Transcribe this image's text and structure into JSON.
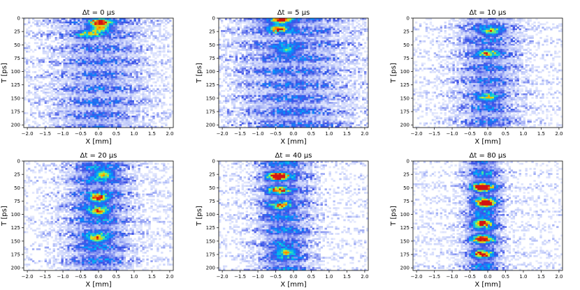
{
  "figure": {
    "panels_count": 6
  },
  "chart_data": [
    {
      "type": "heatmap",
      "title": "Δt = 0 μs",
      "xlabel": "X [mm]",
      "ylabel": "T [ps]",
      "xlim": [
        -2.1,
        2.1
      ],
      "ylim": [
        205,
        0
      ],
      "xticks": [
        "−2.0",
        "−1.5",
        "−1.0",
        "−0.5",
        "0.0",
        "0.5",
        "1.0",
        "1.5",
        "2.0"
      ],
      "yticks": [
        "0",
        "25",
        "50",
        "75",
        "100",
        "125",
        "150",
        "175",
        "200"
      ],
      "colormap": "jet-on-white",
      "hotspots": [
        {
          "x": 0.05,
          "t": 8,
          "level": 0.8
        },
        {
          "x": 0.05,
          "t": 20,
          "level": 0.7
        },
        {
          "x": -0.3,
          "t": 30,
          "level": 0.5
        }
      ]
    },
    {
      "type": "heatmap",
      "title": "Δt = 5 μs",
      "xlabel": "X [mm]",
      "ylabel": "T [ps]",
      "xlim": [
        -2.1,
        2.1
      ],
      "ylim": [
        205,
        0
      ],
      "xticks": [
        "−2.0",
        "−1.5",
        "−1.0",
        "−0.5",
        "0.0",
        "0.5",
        "1.0",
        "1.5",
        "2.0"
      ],
      "yticks": [
        "0",
        "25",
        "50",
        "75",
        "100",
        "125",
        "150",
        "175",
        "200"
      ],
      "colormap": "jet-on-white",
      "hotspots": [
        {
          "x": -0.35,
          "t": 4,
          "level": 0.8
        },
        {
          "x": -0.45,
          "t": 20,
          "level": 0.75
        },
        {
          "x": -0.2,
          "t": 60,
          "level": 0.5
        }
      ]
    },
    {
      "type": "heatmap",
      "title": "Δt = 10 μs",
      "xlabel": "X [mm]",
      "ylabel": "T [ps]",
      "xlim": [
        -2.1,
        2.1
      ],
      "ylim": [
        205,
        0
      ],
      "xticks": [
        "−2.0",
        "−1.5",
        "−1.0",
        "−0.5",
        "0.0",
        "0.5",
        "1.0",
        "1.5",
        "2.0"
      ],
      "yticks": [
        "0",
        "25",
        "50",
        "75",
        "100",
        "125",
        "150",
        "175",
        "200"
      ],
      "colormap": "jet-on-white",
      "hotspots": [
        {
          "x": 0.1,
          "t": 25,
          "level": 0.6
        },
        {
          "x": 0.0,
          "t": 65,
          "level": 0.55
        },
        {
          "x": 0.0,
          "t": 150,
          "level": 0.5
        }
      ]
    },
    {
      "type": "heatmap",
      "title": "Δt = 20 μs",
      "xlabel": "X [mm]",
      "ylabel": "T [ps]",
      "xlim": [
        -2.1,
        2.1
      ],
      "ylim": [
        205,
        0
      ],
      "xticks": [
        "−2.0",
        "−1.5",
        "−1.0",
        "−0.5",
        "0.0",
        "0.5",
        "1.0",
        "1.5",
        "2.0"
      ],
      "yticks": [
        "0",
        "25",
        "50",
        "75",
        "100",
        "125",
        "150",
        "175",
        "200"
      ],
      "colormap": "jet-on-white",
      "hotspots": [
        {
          "x": 0.15,
          "t": 25,
          "level": 0.65
        },
        {
          "x": 0.0,
          "t": 70,
          "level": 0.8
        },
        {
          "x": 0.0,
          "t": 95,
          "level": 0.7
        },
        {
          "x": -0.05,
          "t": 145,
          "level": 0.7
        }
      ]
    },
    {
      "type": "heatmap",
      "title": "Δt = 40 μs",
      "xlabel": "X [mm]",
      "ylabel": "T [ps]",
      "xlim": [
        -2.1,
        2.1
      ],
      "ylim": [
        205,
        0
      ],
      "xticks": [
        "−2.0",
        "−1.5",
        "−1.0",
        "−0.5",
        "0.0",
        "0.5",
        "1.0",
        "1.5",
        "2.0"
      ],
      "yticks": [
        "0",
        "25",
        "50",
        "75",
        "100",
        "125",
        "150",
        "175",
        "200"
      ],
      "colormap": "jet-on-white",
      "hotspots": [
        {
          "x": -0.45,
          "t": 28,
          "level": 0.95
        },
        {
          "x": -0.45,
          "t": 55,
          "level": 0.6
        },
        {
          "x": -0.4,
          "t": 85,
          "level": 0.55
        },
        {
          "x": -0.2,
          "t": 170,
          "level": 0.6
        }
      ]
    },
    {
      "type": "heatmap",
      "title": "Δt = 80 μs",
      "xlabel": "X [mm]",
      "ylabel": "T [ps]",
      "xlim": [
        -2.1,
        2.1
      ],
      "ylim": [
        205,
        0
      ],
      "xticks": [
        "−2.0",
        "−1.5",
        "−1.0",
        "−0.5",
        "0.0",
        "0.5",
        "1.0",
        "1.5",
        "2.0"
      ],
      "yticks": [
        "0",
        "25",
        "50",
        "75",
        "100",
        "125",
        "150",
        "175",
        "200"
      ],
      "colormap": "jet-on-white",
      "hotspots": [
        {
          "x": -0.15,
          "t": 50,
          "level": 0.95
        },
        {
          "x": -0.05,
          "t": 80,
          "level": 1.0
        },
        {
          "x": -0.15,
          "t": 115,
          "level": 0.75
        },
        {
          "x": -0.15,
          "t": 145,
          "level": 0.7
        },
        {
          "x": -0.15,
          "t": 175,
          "level": 0.6
        }
      ]
    }
  ]
}
